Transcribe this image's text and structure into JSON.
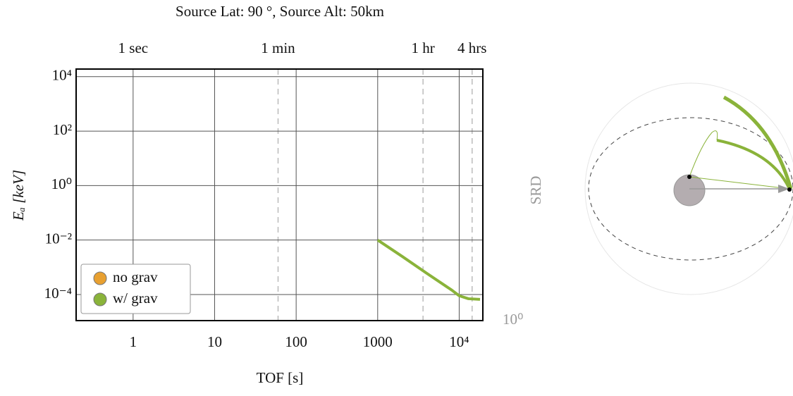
{
  "chart_data": {
    "type": "line",
    "title": "Source Lat: 90 °, Source Alt: 50km",
    "xlabel": "TOF [s]",
    "ylabel": "Eₐ [keV]",
    "xscale": "log",
    "yscale": "log",
    "xlim": [
      0.2,
      19500
    ],
    "ylim": [
      1.1e-05,
      19000
    ],
    "xticks": [
      1,
      10,
      100,
      1000,
      {
        "value": 10000,
        "label": "10⁴"
      }
    ],
    "x2ticks": [
      {
        "value": 1,
        "label": "1 sec"
      },
      {
        "value": 60,
        "label": "1 min"
      },
      {
        "value": 3600,
        "label": "1 hr"
      },
      {
        "value": 14400,
        "label": "4 hrs"
      }
    ],
    "yticks": [
      {
        "value": 0.0001,
        "label": "10⁻⁴"
      },
      {
        "value": 0.01,
        "label": "10⁻²"
      },
      {
        "value": 1,
        "label": "10⁰"
      },
      {
        "value": 100,
        "label": "10²"
      },
      {
        "value": 10000,
        "label": "10⁴"
      }
    ],
    "grid": true,
    "legend": "lower left",
    "series": [
      {
        "name": "no grav",
        "color": "#e8a030",
        "x": [],
        "values": []
      },
      {
        "name": "w/ grav",
        "color": "#8ab33a",
        "x": [
          1000,
          2000,
          4000,
          8100,
          10000,
          13000,
          18000
        ],
        "values": [
          0.01,
          0.0025,
          0.0006,
          0.000145,
          9e-05,
          7e-05,
          6.6e-05
        ]
      }
    ],
    "annotations": [
      "10⁰",
      "SRD"
    ]
  }
}
